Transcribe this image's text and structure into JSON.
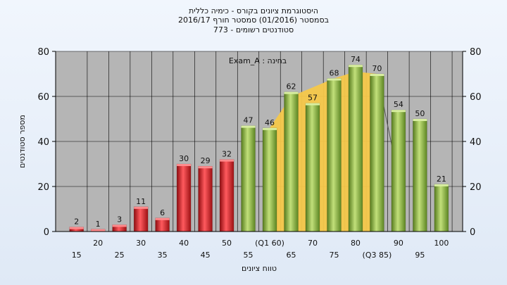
{
  "chart_data": {
    "type": "bar",
    "title_lines": [
      "היסטוגרמת ציונים בקורס - כימיה כללית",
      "בסמסטר  (01/2016)  סמסטר חורף  2016/17",
      "סטודנטים רשומים - 773"
    ],
    "annotation": "בחינה : Exam_A",
    "xlabel": "טווח ציונים",
    "ylabel": "מספר סטודנטים",
    "ylim": [
      0,
      80
    ],
    "yticks": [
      0,
      20,
      40,
      60,
      80
    ],
    "grid": true,
    "x_tick_labels": [
      {
        "label": "15",
        "at": 15,
        "row": 2
      },
      {
        "label": "20",
        "at": 20,
        "row": 1
      },
      {
        "label": "25",
        "at": 25,
        "row": 2
      },
      {
        "label": "30",
        "at": 30,
        "row": 1
      },
      {
        "label": "35",
        "at": 35,
        "row": 2
      },
      {
        "label": "40",
        "at": 40,
        "row": 1
      },
      {
        "label": "45",
        "at": 45,
        "row": 2
      },
      {
        "label": "50",
        "at": 50,
        "row": 1
      },
      {
        "label": "55",
        "at": 55,
        "row": 2
      },
      {
        "label": "(Q1 60)",
        "at": 60,
        "row": 1
      },
      {
        "label": "65",
        "at": 65,
        "row": 2
      },
      {
        "label": "70",
        "at": 70,
        "row": 1
      },
      {
        "label": "75",
        "at": 75,
        "row": 2
      },
      {
        "label": "80",
        "at": 80,
        "row": 1
      },
      {
        "label": "(Q3 85)",
        "at": 85,
        "row": 2
      },
      {
        "label": "90",
        "at": 90,
        "row": 1
      },
      {
        "label": "95",
        "at": 95,
        "row": 2
      },
      {
        "label": "100",
        "at": 100,
        "row": 1
      }
    ],
    "bars": [
      {
        "x": 15,
        "value": 2,
        "color": "red"
      },
      {
        "x": 20,
        "value": 1,
        "color": "red"
      },
      {
        "x": 25,
        "value": 3,
        "color": "red"
      },
      {
        "x": 30,
        "value": 11,
        "color": "red"
      },
      {
        "x": 35,
        "value": 6,
        "color": "red"
      },
      {
        "x": 40,
        "value": 30,
        "color": "red"
      },
      {
        "x": 45,
        "value": 29,
        "color": "red"
      },
      {
        "x": 50,
        "value": 32,
        "color": "red"
      },
      {
        "x": 55,
        "value": 47,
        "color": "green"
      },
      {
        "x": 60,
        "value": 46,
        "color": "green"
      },
      {
        "x": 65,
        "value": 62,
        "color": "green"
      },
      {
        "x": 70,
        "value": 57,
        "color": "green"
      },
      {
        "x": 75,
        "value": 68,
        "color": "green"
      },
      {
        "x": 80,
        "value": 74,
        "color": "green"
      },
      {
        "x": 85,
        "value": 70,
        "color": "green"
      },
      {
        "x": 90,
        "value": 54,
        "color": "green"
      },
      {
        "x": 95,
        "value": 50,
        "color": "green"
      },
      {
        "x": 100,
        "value": 21,
        "color": "green"
      }
    ],
    "band_area": [
      {
        "x": 60,
        "y": 46
      },
      {
        "x": 65,
        "y": 60
      },
      {
        "x": 70,
        "y": 64
      },
      {
        "x": 75,
        "y": 68
      },
      {
        "x": 80,
        "y": 71
      },
      {
        "x": 85,
        "y": 70
      }
    ],
    "band_drop_line": [
      {
        "x": 85,
        "y": 70
      },
      {
        "x": 90,
        "y": 24
      }
    ],
    "colors": {
      "red": "#e31e24",
      "green": "#8cbd3c",
      "band": "#f5c84a",
      "plot_bg": "#b5b5b5"
    }
  }
}
